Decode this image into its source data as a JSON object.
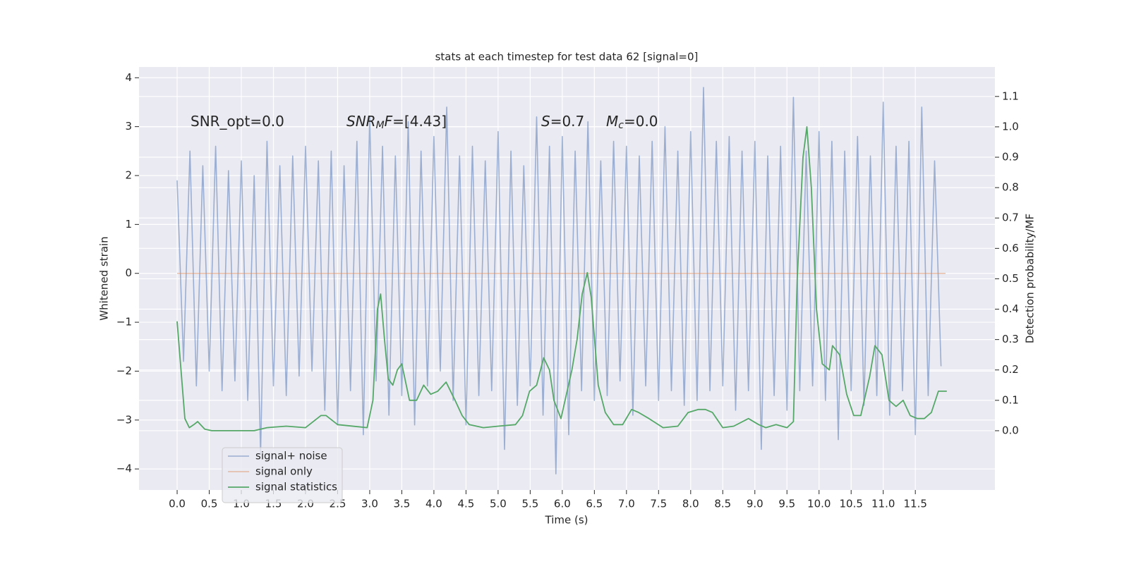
{
  "chart_data": {
    "type": "line",
    "title": "stats at each timestep for test data 62 [signal=0]",
    "xlabel": "Time (s)",
    "ylabel": "Whitened strain",
    "y2label": "Detection probability/MF",
    "annotations": [
      "SNR_opt=0.0",
      "SNRMF=[4.43]",
      "S=0.7",
      "Mc=0.0"
    ],
    "xlim": [
      -0.594,
      12.74
    ],
    "ylim": [
      -4.43,
      4.22
    ],
    "y2lim": [
      -0.195,
      1.197
    ],
    "xticks": [
      {
        "value": 0,
        "label": "0.0"
      },
      0.5,
      {
        "value": 1,
        "label": "1.0"
      },
      1.5,
      {
        "value": 2,
        "label": "2.0"
      },
      2.5,
      {
        "value": 3,
        "label": "3.0"
      },
      3.5,
      {
        "value": 4,
        "label": "4.0"
      },
      4.5,
      {
        "value": 5,
        "label": "5.0"
      },
      5.5,
      {
        "value": 6,
        "label": "6.0"
      },
      6.5,
      {
        "value": 7,
        "label": "7.0"
      },
      7.5,
      {
        "value": 8,
        "label": "8.0"
      },
      8.5,
      {
        "value": 9,
        "label": "9.0"
      },
      9.5,
      {
        "value": 10,
        "label": "10.0"
      },
      10.5,
      {
        "value": 11,
        "label": "11.0"
      },
      11.5
    ],
    "yticks": [
      {
        "value": -4,
        "label": "−4"
      },
      {
        "value": -3,
        "label": "−3"
      },
      {
        "value": -2,
        "label": "−2"
      },
      {
        "value": -1,
        "label": "−1"
      },
      0,
      1,
      2,
      3,
      4
    ],
    "y2ticks": [
      {
        "value": 0,
        "label": "0.0"
      },
      0.1,
      0.2,
      0.3,
      0.4,
      0.5,
      0.6,
      0.7,
      0.8,
      0.9,
      {
        "value": 1,
        "label": "1.0"
      },
      1.1
    ],
    "grid": true,
    "legend": "lower left",
    "series": [
      {
        "name": "signal+ noise",
        "color": "#4c72b0",
        "x": [
          0.0,
          0.1,
          0.2,
          0.3,
          0.4,
          0.5,
          0.6,
          0.7,
          0.8,
          0.9,
          1.0,
          1.1,
          1.2,
          1.3,
          1.4,
          1.5,
          1.6,
          1.7,
          1.8,
          1.9,
          2.0,
          2.1,
          2.2,
          2.3,
          2.4,
          2.5,
          2.6,
          2.7,
          2.8,
          2.9,
          3.0,
          3.1,
          3.2,
          3.3,
          3.4,
          3.5,
          3.6,
          3.7,
          3.8,
          3.9,
          4.0,
          4.1,
          4.2,
          4.3,
          4.4,
          4.5,
          4.6,
          4.7,
          4.8,
          4.9,
          5.0,
          5.1,
          5.2,
          5.3,
          5.4,
          5.5,
          5.6,
          5.7,
          5.8,
          5.9,
          6.0,
          6.1,
          6.2,
          6.3,
          6.4,
          6.5,
          6.6,
          6.7,
          6.8,
          6.9,
          7.0,
          7.1,
          7.2,
          7.3,
          7.4,
          7.5,
          7.6,
          7.7,
          7.8,
          7.9,
          8.0,
          8.1,
          8.2,
          8.3,
          8.4,
          8.5,
          8.6,
          8.7,
          8.8,
          8.9,
          9.0,
          9.1,
          9.2,
          9.3,
          9.4,
          9.5,
          9.6,
          9.7,
          9.8,
          9.9,
          10.0,
          10.1,
          10.2,
          10.3,
          10.4,
          10.5,
          10.6,
          10.7,
          10.8,
          10.9,
          11.0,
          11.1,
          11.2,
          11.3,
          11.4,
          11.5,
          11.6,
          11.7,
          11.8,
          11.9
        ],
        "values": [
          1.9,
          -1.8,
          2.5,
          -2.3,
          2.2,
          -2.0,
          2.6,
          -2.4,
          2.1,
          -2.2,
          2.3,
          -2.6,
          2.0,
          -3.7,
          2.7,
          -2.3,
          2.2,
          -2.5,
          2.4,
          -2.1,
          2.6,
          -2.0,
          2.3,
          -2.8,
          2.5,
          -3.1,
          2.2,
          -2.4,
          2.7,
          -3.3,
          3.2,
          -2.2,
          2.6,
          -2.9,
          2.4,
          -2.5,
          3.1,
          -3.1,
          2.5,
          -2.3,
          2.8,
          -2.0,
          3.4,
          -2.6,
          2.4,
          -3.1,
          2.6,
          -2.5,
          2.3,
          -2.4,
          2.9,
          -3.6,
          2.5,
          -2.7,
          2.2,
          -2.3,
          3.2,
          -2.9,
          2.6,
          -4.1,
          2.8,
          -3.3,
          2.5,
          -2.4,
          3.1,
          -2.6,
          2.3,
          -2.5,
          2.7,
          -2.2,
          2.6,
          -2.9,
          2.4,
          -2.3,
          2.7,
          -2.6,
          3.0,
          -2.4,
          2.5,
          -2.7,
          2.9,
          -2.6,
          3.8,
          -2.4,
          2.7,
          -2.3,
          2.8,
          -2.8,
          2.5,
          -2.4,
          2.7,
          -3.6,
          2.4,
          -2.5,
          2.6,
          -2.8,
          3.6,
          -2.4,
          2.5,
          -2.3,
          2.9,
          -2.6,
          2.7,
          -3.4,
          2.5,
          -2.4,
          2.8,
          -2.7,
          2.4,
          -2.5,
          3.5,
          -2.9,
          2.6,
          -2.4,
          2.7,
          -3.3,
          3.4,
          -2.5,
          2.3,
          -1.9
        ]
      },
      {
        "name": "signal only",
        "color": "#dd8452",
        "x": [
          0.0,
          11.97
        ],
        "values": [
          0,
          0
        ]
      },
      {
        "name": "signal statistics",
        "color": "#55a868",
        "axis": "y2",
        "x": [
          0.0,
          0.12,
          0.19,
          0.26,
          0.32,
          0.43,
          0.54,
          1.2,
          1.4,
          1.7,
          2.0,
          2.24,
          2.32,
          2.5,
          2.96,
          3.05,
          3.12,
          3.17,
          3.23,
          3.29,
          3.36,
          3.43,
          3.5,
          3.62,
          3.73,
          3.84,
          3.95,
          4.06,
          4.19,
          4.33,
          4.44,
          4.55,
          4.77,
          5.0,
          5.27,
          5.38,
          5.49,
          5.6,
          5.71,
          5.8,
          5.87,
          5.98,
          6.15,
          6.23,
          6.31,
          6.39,
          6.45,
          6.56,
          6.67,
          6.8,
          6.94,
          7.08,
          7.19,
          7.35,
          7.57,
          7.8,
          7.96,
          8.12,
          8.23,
          8.34,
          8.5,
          8.67,
          8.9,
          9.06,
          9.17,
          9.33,
          9.5,
          9.6,
          9.66,
          9.75,
          9.81,
          9.88,
          9.96,
          10.05,
          10.16,
          10.21,
          10.32,
          10.43,
          10.54,
          10.65,
          10.79,
          10.87,
          10.98,
          11.09,
          11.2,
          11.31,
          11.42,
          11.53,
          11.64,
          11.75,
          11.86,
          11.99
        ],
        "values": [
          0.36,
          0.04,
          0.01,
          0.02,
          0.03,
          0.005,
          0.0,
          0.0,
          0.01,
          0.015,
          0.01,
          0.05,
          0.05,
          0.02,
          0.01,
          0.1,
          0.4,
          0.45,
          0.3,
          0.17,
          0.15,
          0.2,
          0.22,
          0.1,
          0.1,
          0.15,
          0.12,
          0.13,
          0.16,
          0.1,
          0.05,
          0.02,
          0.01,
          0.015,
          0.02,
          0.05,
          0.13,
          0.15,
          0.24,
          0.2,
          0.1,
          0.04,
          0.2,
          0.3,
          0.45,
          0.52,
          0.44,
          0.15,
          0.06,
          0.02,
          0.02,
          0.07,
          0.06,
          0.04,
          0.01,
          0.015,
          0.06,
          0.07,
          0.07,
          0.06,
          0.01,
          0.015,
          0.04,
          0.02,
          0.01,
          0.02,
          0.01,
          0.03,
          0.5,
          0.9,
          1.0,
          0.8,
          0.4,
          0.22,
          0.2,
          0.28,
          0.25,
          0.12,
          0.05,
          0.05,
          0.18,
          0.28,
          0.25,
          0.1,
          0.08,
          0.1,
          0.05,
          0.04,
          0.04,
          0.06,
          0.13,
          0.13
        ]
      }
    ]
  }
}
